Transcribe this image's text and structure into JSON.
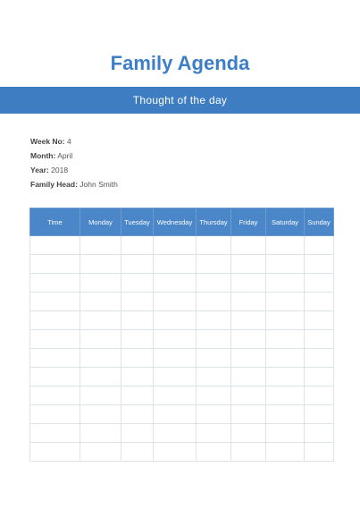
{
  "title": "Family Agenda",
  "banner": "Thought of the day",
  "info": {
    "week_label": "Week No:",
    "week_value": "4",
    "month_label": "Month:",
    "month_value": "April",
    "year_label": "Year:",
    "year_value": "2018",
    "head_label": "Family Head:",
    "head_value": "John Smith"
  },
  "table": {
    "headers": [
      "Time",
      "Monday",
      "Tuesday",
      "Wednesday",
      "Thursday",
      "Friday",
      "Saturday",
      "Sunday"
    ],
    "empty_rows": 12
  },
  "colors": {
    "title": "#3d7fc7",
    "banner": "#3e7dc1",
    "header": "#4a86c8",
    "grid": "#dde3ea"
  }
}
